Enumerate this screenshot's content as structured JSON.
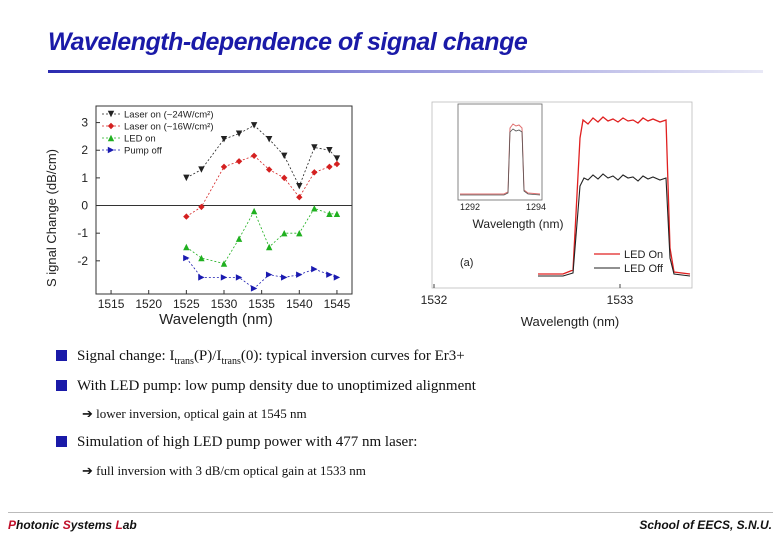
{
  "title": "Wavelength-dependence of signal change",
  "chart_data": [
    {
      "type": "line",
      "xlabel": "Wavelength (nm)",
      "ylabel": "S ignal Change (dB/cm)",
      "xlim": [
        1513,
        1547
      ],
      "ylim": [
        -3.2,
        3.6
      ],
      "x_ticks": [
        1515,
        1520,
        1525,
        1530,
        1535,
        1540,
        1545
      ],
      "y_ticks": [
        3,
        2,
        1,
        0,
        -1,
        -2
      ],
      "zero_line": true,
      "legend_position": "top-left",
      "x": [
        1525,
        1527,
        1530,
        1532,
        1534,
        1536,
        1538,
        1540,
        1542,
        1544,
        1545
      ],
      "series": [
        {
          "name": "Laser on (~24W/cm²)",
          "color": "#222222",
          "marker": "triangle-down",
          "values": [
            1.0,
            1.3,
            2.4,
            2.6,
            2.9,
            2.4,
            1.8,
            0.7,
            2.1,
            2.0,
            1.7
          ]
        },
        {
          "name": "Laser on (~16W/cm²)",
          "color": "#d42020",
          "marker": "diamond",
          "values": [
            -0.4,
            -0.05,
            1.4,
            1.6,
            1.8,
            1.3,
            1.0,
            0.3,
            1.2,
            1.4,
            1.5
          ]
        },
        {
          "name": "LED on",
          "color": "#20b020",
          "marker": "triangle-up",
          "values": [
            -1.5,
            -1.9,
            -2.1,
            -1.2,
            -0.2,
            -1.5,
            -1.0,
            -1.0,
            -0.1,
            -0.3,
            -0.3
          ]
        },
        {
          "name": "Pump off",
          "color": "#1a1ab0",
          "marker": "triangle-right",
          "values": [
            -1.9,
            -2.6,
            -2.6,
            -2.6,
            -3.0,
            -2.5,
            -2.6,
            -2.5,
            -2.3,
            -2.5,
            -2.6
          ]
        }
      ]
    },
    {
      "type": "line",
      "xlabel": "Wavelength (nm)",
      "x_ticks": [
        "1532",
        "1533"
      ],
      "legend_position": "bottom-right",
      "series": [
        {
          "name": "LED On",
          "color": "#e02020"
        },
        {
          "name": "LED Off",
          "color": "#222222"
        }
      ],
      "inset": {
        "xlabel": "Wavelength (nm)",
        "x_ticks": [
          "1292",
          "1294"
        ]
      },
      "panel_label": "(a)"
    }
  ],
  "bullets": [
    {
      "pre": "Signal change: I",
      "sub1": "trans",
      "mid": "(P)/I",
      "sub2": "trans",
      "post": "(0): typical inversion curves for Er3+"
    },
    {
      "text": "With LED pump: low pump density due to unoptimized alignment"
    },
    {
      "text": "Simulation of high LED pump power with 477 nm laser:"
    }
  ],
  "subpoints": [
    {
      "text": "lower inversion, optical gain at 1545 nm"
    },
    {
      "text": "full inversion with 3 dB/cm optical gain at 1533 nm"
    }
  ],
  "footer": {
    "left_parts": [
      "P",
      "hotonic ",
      "S",
      "ystems ",
      "L",
      "ab"
    ],
    "right": "School of EECS, S.N.U."
  }
}
